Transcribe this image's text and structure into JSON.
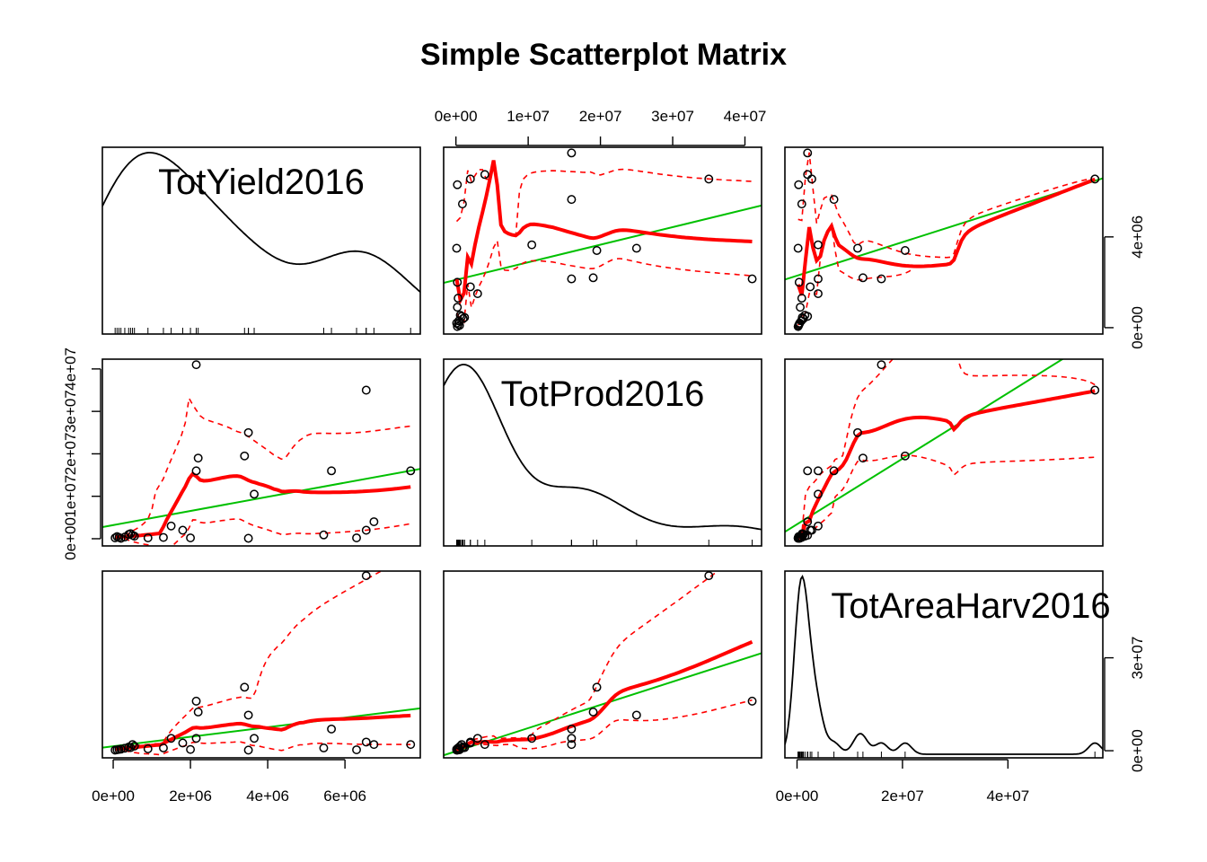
{
  "chart_data": {
    "type": "scatter",
    "title": "Simple Scatterplot Matrix",
    "variables": [
      "TotYield2016",
      "TotProd2016",
      "TotAreaHarv2016"
    ],
    "tick_labels": {
      "TotYield2016": [
        "0e+00",
        "2e+06",
        "4e+06",
        "6e+06"
      ],
      "TotProd2016": [
        "0e+00",
        "1e+07",
        "2e+07",
        "3e+07",
        "4e+07"
      ],
      "TotAreaHarv2016": [
        "0e+00",
        "2e+07",
        "4e+07"
      ],
      "TotYield2016_right": [
        "0e+00",
        "4e+06"
      ],
      "TotAreaHarv2016_right": [
        "0e+00",
        "3e+07"
      ]
    },
    "tick_values": {
      "TotYield2016": [
        0,
        2000000,
        4000000,
        6000000
      ],
      "TotProd2016": [
        0,
        10000000,
        20000000,
        30000000,
        40000000
      ],
      "TotAreaHarv2016": [
        0,
        20000000,
        40000000
      ],
      "TotYield2016_right": [
        0,
        4000000
      ],
      "TotAreaHarv2016_right": [
        0,
        30000000
      ]
    },
    "axis_ranges": {
      "TotYield2016": [
        -280000,
        7950000
      ],
      "TotProd2016": [
        -1700000,
        42300000
      ],
      "TotAreaHarv2016": [
        -2300000,
        58000000
      ]
    },
    "points": [
      {
        "TotYield2016": 50000,
        "TotProd2016": 200000,
        "TotAreaHarv2016": 200000
      },
      {
        "TotYield2016": 100000,
        "TotProd2016": 500000,
        "TotAreaHarv2016": 300000
      },
      {
        "TotYield2016": 150000,
        "TotProd2016": 300000,
        "TotAreaHarv2016": 400000
      },
      {
        "TotYield2016": 200000,
        "TotProd2016": 100000,
        "TotAreaHarv2016": 500000
      },
      {
        "TotYield2016": 300000,
        "TotProd2016": 400000,
        "TotAreaHarv2016": 800000
      },
      {
        "TotYield2016": 400000,
        "TotProd2016": 1000000,
        "TotAreaHarv2016": 1200000
      },
      {
        "TotYield2016": 450000,
        "TotProd2016": 1200000,
        "TotAreaHarv2016": 1000000
      },
      {
        "TotYield2016": 500000,
        "TotProd2016": 800000,
        "TotAreaHarv2016": 2000000
      },
      {
        "TotYield2016": 550000,
        "TotProd2016": 600000,
        "TotAreaHarv2016": 1500000
      },
      {
        "TotYield2016": 900000,
        "TotProd2016": 200000,
        "TotAreaHarv2016": 600000
      },
      {
        "TotYield2016": 1300000,
        "TotProd2016": 300000,
        "TotAreaHarv2016": 900000
      },
      {
        "TotYield2016": 1500000,
        "TotProd2016": 3000000,
        "TotAreaHarv2016": 4000000
      },
      {
        "TotYield2016": 1800000,
        "TotProd2016": 2000000,
        "TotAreaHarv2016": 2500000
      },
      {
        "TotYield2016": 2000000,
        "TotProd2016": 200000,
        "TotAreaHarv2016": 400000
      },
      {
        "TotYield2016": 2150000,
        "TotProd2016": 41000000,
        "TotAreaHarv2016": 16000000
      },
      {
        "TotYield2016": 2200000,
        "TotProd2016": 19000000,
        "TotAreaHarv2016": 12500000
      },
      {
        "TotYield2016": 2150000,
        "TotProd2016": 16000000,
        "TotAreaHarv2016": 4000000
      },
      {
        "TotYield2016": 3400000,
        "TotProd2016": 19500000,
        "TotAreaHarv2016": 20500000
      },
      {
        "TotYield2016": 3500000,
        "TotProd2016": 25000000,
        "TotAreaHarv2016": 11500000
      },
      {
        "TotYield2016": 3500000,
        "TotProd2016": 100000,
        "TotAreaHarv2016": 200000
      },
      {
        "TotYield2016": 3650000,
        "TotProd2016": 10500000,
        "TotAreaHarv2016": 4000000
      },
      {
        "TotYield2016": 5450000,
        "TotProd2016": 900000,
        "TotAreaHarv2016": 900000
      },
      {
        "TotYield2016": 5650000,
        "TotProd2016": 16000000,
        "TotAreaHarv2016": 7000000
      },
      {
        "TotYield2016": 6300000,
        "TotProd2016": 200000,
        "TotAreaHarv2016": 300000
      },
      {
        "TotYield2016": 6550000,
        "TotProd2016": 35000000,
        "TotAreaHarv2016": 56500000
      },
      {
        "TotYield2016": 6550000,
        "TotProd2016": 2000000,
        "TotAreaHarv2016": 2800000
      },
      {
        "TotYield2016": 6750000,
        "TotProd2016": 4000000,
        "TotAreaHarv2016": 2000000
      },
      {
        "TotYield2016": 7700000,
        "TotProd2016": 16000000,
        "TotAreaHarv2016": 2000000
      }
    ],
    "colors": {
      "points": "#000000",
      "regression": "#00c000",
      "smooth": "#ff0000",
      "density": "#000000"
    },
    "diagonal": "density",
    "regression_line": true,
    "smoother": true,
    "grid": false
  }
}
